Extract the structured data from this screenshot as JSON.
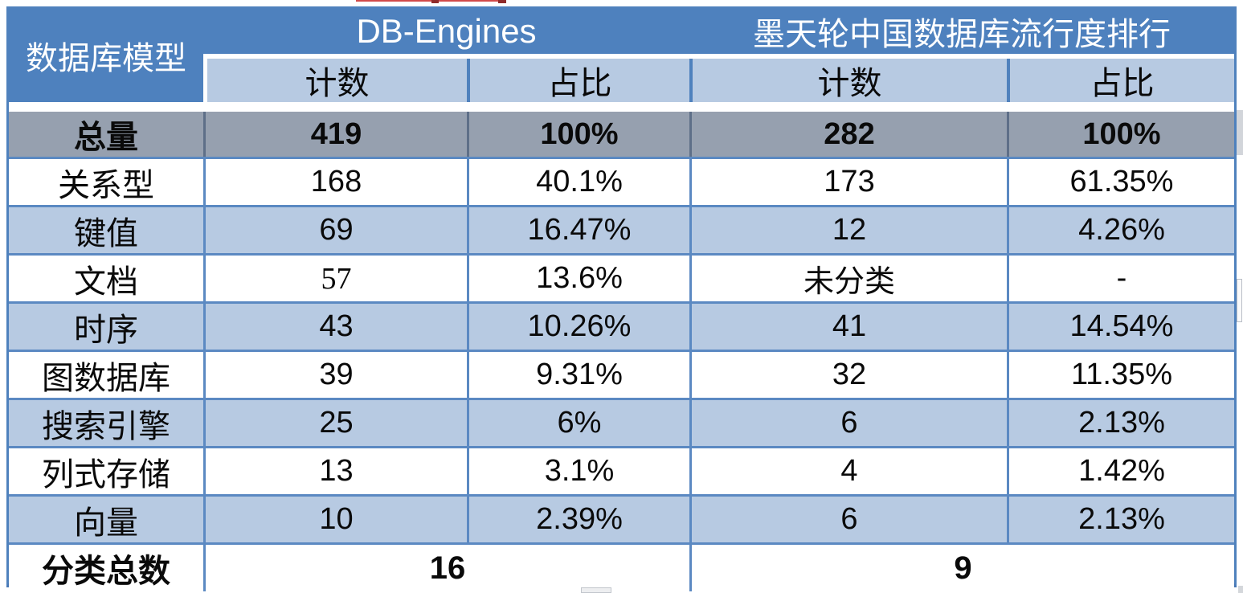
{
  "table": {
    "corner_header": "数据库模型",
    "groups": [
      {
        "label": "DB-Engines"
      },
      {
        "label": "墨天轮中国数据库流行度排行"
      }
    ],
    "subheaders": [
      "计数",
      "占比",
      "计数",
      "占比"
    ],
    "total_row": {
      "label": "总量",
      "values": [
        "419",
        "100%",
        "282",
        "100%"
      ]
    },
    "rows": [
      {
        "label": "关系型",
        "values": [
          "168",
          "40.1%",
          "173",
          "61.35%"
        ]
      },
      {
        "label": "键值",
        "values": [
          "69",
          "16.47%",
          "12",
          "4.26%"
        ]
      },
      {
        "label": "文档",
        "values": [
          "57",
          "13.6%",
          "未分类",
          "-"
        ]
      },
      {
        "label": "时序",
        "values": [
          "43",
          "10.26%",
          "41",
          "14.54%"
        ]
      },
      {
        "label": "图数据库",
        "values": [
          "39",
          "9.31%",
          "32",
          "11.35%"
        ]
      },
      {
        "label": "搜索引擎",
        "values": [
          "25",
          "6%",
          "6",
          "2.13%"
        ]
      },
      {
        "label": "列式存储",
        "values": [
          "13",
          "3.1%",
          "4",
          "1.42%"
        ]
      },
      {
        "label": "向量",
        "values": [
          "10",
          "2.39%",
          "6",
          "2.13%"
        ]
      }
    ],
    "footer_row": {
      "label": "分类总数",
      "db_engines_total": "16",
      "motianlun_total": "9"
    }
  },
  "colors": {
    "header_blue": "#4E81BE",
    "subheader_blue": "#B7CAE2",
    "row_alt_blue": "#B7CAE2",
    "total_row_gray": "#96A0AF",
    "border_blue": "#4F81BD",
    "text_black": "#0A0A0A",
    "header_text_white": "#FFFFFF"
  },
  "chart_data": {
    "type": "table",
    "title": "数据库模型统计对比：DB-Engines vs 墨天轮中国数据库流行度排行",
    "column_groups": [
      "数据库模型",
      "DB-Engines",
      "墨天轮中国数据库流行度排行"
    ],
    "columns": [
      "数据库模型",
      "DB-Engines 计数",
      "DB-Engines 占比",
      "墨天轮 计数",
      "墨天轮 占比"
    ],
    "rows": [
      [
        "总量",
        "419",
        "100%",
        "282",
        "100%"
      ],
      [
        "关系型",
        "168",
        "40.1%",
        "173",
        "61.35%"
      ],
      [
        "键值",
        "69",
        "16.47%",
        "12",
        "4.26%"
      ],
      [
        "文档",
        "57",
        "13.6%",
        "未分类",
        "-"
      ],
      [
        "时序",
        "43",
        "10.26%",
        "41",
        "14.54%"
      ],
      [
        "图数据库",
        "39",
        "9.31%",
        "32",
        "11.35%"
      ],
      [
        "搜索引擎",
        "25",
        "6%",
        "6",
        "2.13%"
      ],
      [
        "列式存储",
        "13",
        "3.1%",
        "4",
        "1.42%"
      ],
      [
        "向量",
        "10",
        "2.39%",
        "6",
        "2.13%"
      ],
      [
        "分类总数",
        "16",
        "",
        "9",
        ""
      ]
    ]
  }
}
